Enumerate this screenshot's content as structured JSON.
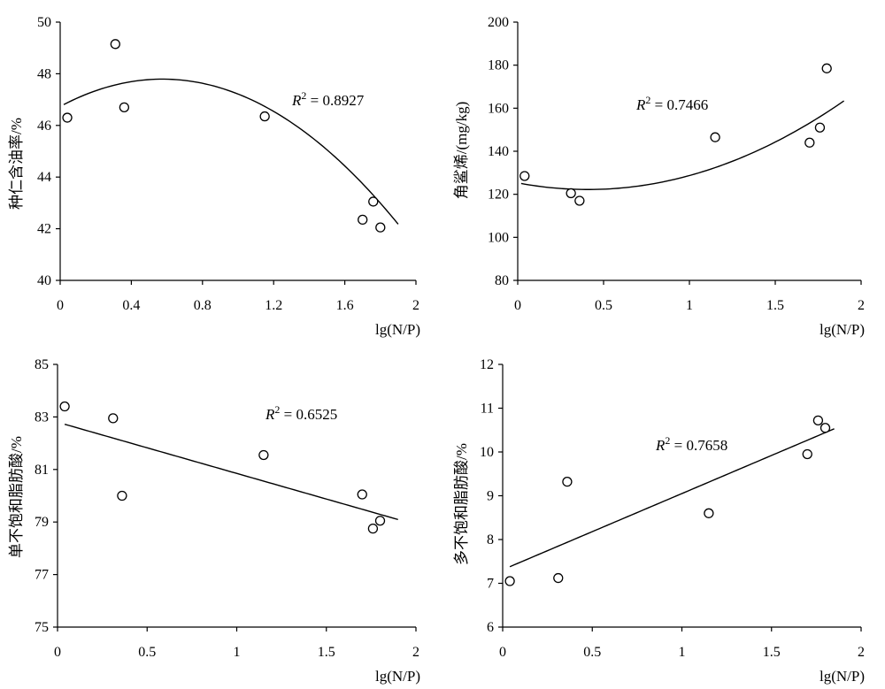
{
  "chart_data": [
    {
      "type": "scatter",
      "xlabel": "lg(N/P)",
      "ylabel": "种仁含油率/%",
      "xlim": [
        0,
        2
      ],
      "ylim": [
        40,
        50
      ],
      "xticks": [
        0,
        0.4,
        0.8,
        1.2,
        1.6,
        2
      ],
      "xtick_labels": [
        "0",
        "0.4",
        "0.8",
        "1.2",
        "1.6",
        "2"
      ],
      "yticks": [
        40,
        42,
        44,
        46,
        48,
        50
      ],
      "ytick_labels": [
        "40",
        "42",
        "44",
        "46",
        "48",
        "50"
      ],
      "points": [
        {
          "x": 0.04,
          "y": 46.3
        },
        {
          "x": 0.31,
          "y": 49.15
        },
        {
          "x": 0.36,
          "y": 46.7
        },
        {
          "x": 1.15,
          "y": 46.35
        },
        {
          "x": 1.7,
          "y": 42.35
        },
        {
          "x": 1.76,
          "y": 43.05
        },
        {
          "x": 1.8,
          "y": 42.05
        }
      ],
      "fit": {
        "kind": "quadratic",
        "x_range": [
          0.02,
          1.9
        ],
        "coef": [
          46.735,
          3.68,
          -3.2
        ]
      },
      "r2_prefix": "R",
      "r2_exp": "2",
      "r2_value": " = 0.8927"
    },
    {
      "type": "scatter",
      "xlabel": "lg(N/P)",
      "ylabel": "角鲨烯/(mg/kg)",
      "xlim": [
        0,
        2
      ],
      "ylim": [
        80,
        200
      ],
      "xticks": [
        0,
        0.5,
        1,
        1.5,
        2
      ],
      "xtick_labels": [
        "0",
        "0.5",
        "1",
        "1.5",
        "2"
      ],
      "yticks": [
        80,
        100,
        120,
        140,
        160,
        180,
        200
      ],
      "ytick_labels": [
        "80",
        "100",
        "120",
        "140",
        "160",
        "180",
        "200"
      ],
      "points": [
        {
          "x": 0.04,
          "y": 128.5
        },
        {
          "x": 0.31,
          "y": 120.5
        },
        {
          "x": 0.36,
          "y": 117.0
        },
        {
          "x": 1.15,
          "y": 146.5
        },
        {
          "x": 1.7,
          "y": 144.0
        },
        {
          "x": 1.76,
          "y": 151.0
        },
        {
          "x": 1.8,
          "y": 178.5
        }
      ],
      "fit": {
        "kind": "quadratic",
        "x_range": [
          0.02,
          1.9
        ],
        "coef": [
          125.3,
          -15.1,
          18.5
        ]
      },
      "r2_prefix": "R",
      "r2_exp": "2",
      "r2_value": " = 0.7466"
    },
    {
      "type": "scatter",
      "xlabel": "lg(N/P)",
      "ylabel": "单不饱和脂肪酸/%",
      "xlim": [
        0,
        2
      ],
      "ylim": [
        75,
        85
      ],
      "xticks": [
        0,
        0.5,
        1,
        1.5,
        2
      ],
      "xtick_labels": [
        "0",
        "0.5",
        "1",
        "1.5",
        "2"
      ],
      "yticks": [
        75,
        77,
        79,
        81,
        83,
        85
      ],
      "ytick_labels": [
        "75",
        "77",
        "79",
        "81",
        "83",
        "85"
      ],
      "points": [
        {
          "x": 0.04,
          "y": 83.4
        },
        {
          "x": 0.31,
          "y": 82.95
        },
        {
          "x": 0.36,
          "y": 80.0
        },
        {
          "x": 1.15,
          "y": 81.55
        },
        {
          "x": 1.7,
          "y": 80.05
        },
        {
          "x": 1.76,
          "y": 78.75
        },
        {
          "x": 1.8,
          "y": 79.05
        }
      ],
      "fit": {
        "kind": "linear",
        "x_range": [
          0.04,
          1.9
        ],
        "coef": [
          82.8,
          -1.95
        ]
      },
      "r2_prefix": "R",
      "r2_exp": "2",
      "r2_value": " = 0.6525"
    },
    {
      "type": "scatter",
      "xlabel": "lg(N/P)",
      "ylabel": "多不饱和脂肪酸/%",
      "xlim": [
        0,
        2
      ],
      "ylim": [
        6,
        12
      ],
      "xticks": [
        0,
        0.5,
        1,
        1.5,
        2
      ],
      "xtick_labels": [
        "0",
        "0.5",
        "1",
        "1.5",
        "2"
      ],
      "yticks": [
        6,
        7,
        8,
        9,
        10,
        11,
        12
      ],
      "ytick_labels": [
        "6",
        "7",
        "8",
        "9",
        "10",
        "11",
        "12"
      ],
      "points": [
        {
          "x": 0.04,
          "y": 7.05
        },
        {
          "x": 0.31,
          "y": 7.12
        },
        {
          "x": 0.36,
          "y": 9.32
        },
        {
          "x": 1.15,
          "y": 8.6
        },
        {
          "x": 1.7,
          "y": 9.95
        },
        {
          "x": 1.76,
          "y": 10.72
        },
        {
          "x": 1.8,
          "y": 10.55
        }
      ],
      "fit": {
        "kind": "linear",
        "x_range": [
          0.04,
          1.85
        ],
        "coef": [
          7.31,
          1.74
        ]
      },
      "r2_prefix": "R",
      "r2_exp": "2",
      "r2_value": " = 0.7658"
    }
  ]
}
